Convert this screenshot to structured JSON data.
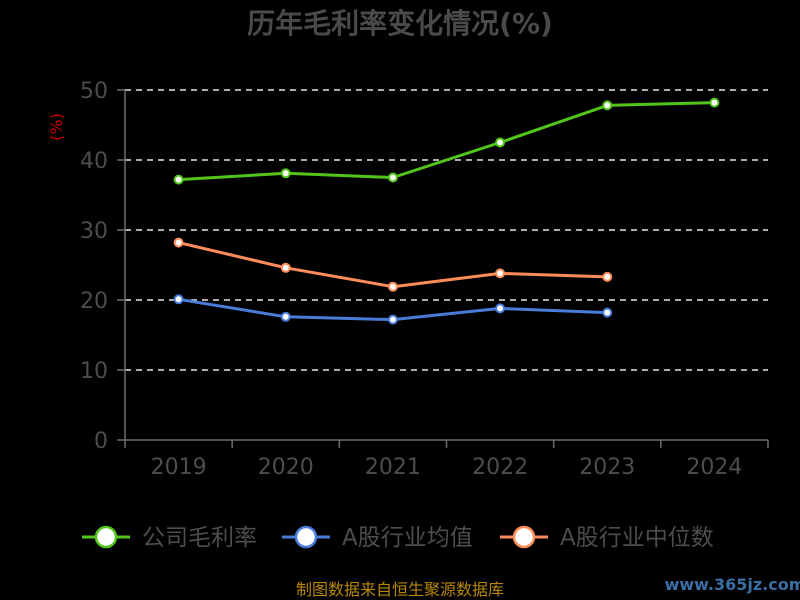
{
  "chart_data": {
    "type": "line",
    "title": "历年毛利率变化情况(%)",
    "ylabel": "(%)",
    "xlabel": "",
    "categories": [
      "2019",
      "2020",
      "2021",
      "2022",
      "2023",
      "2024"
    ],
    "ylim": [
      0,
      50
    ],
    "yticks": [
      0,
      10,
      20,
      30,
      40,
      50
    ],
    "grid": true,
    "legend_position": "bottom",
    "series": [
      {
        "name": "公司毛利率",
        "color": "#52c41a",
        "values": [
          37.2,
          38.1,
          37.5,
          42.5,
          47.8,
          48.2
        ]
      },
      {
        "name": "A股行业均值",
        "color": "#4a7bd8",
        "values": [
          20.1,
          17.6,
          17.2,
          18.8,
          18.2,
          null
        ]
      },
      {
        "name": "A股行业中位数",
        "color": "#ff8c5a",
        "values": [
          28.2,
          24.6,
          21.9,
          23.8,
          23.3,
          null
        ]
      }
    ]
  },
  "footer": {
    "source": "制图数据来自恒生聚源数据库",
    "watermark": "www.365jz.com"
  }
}
